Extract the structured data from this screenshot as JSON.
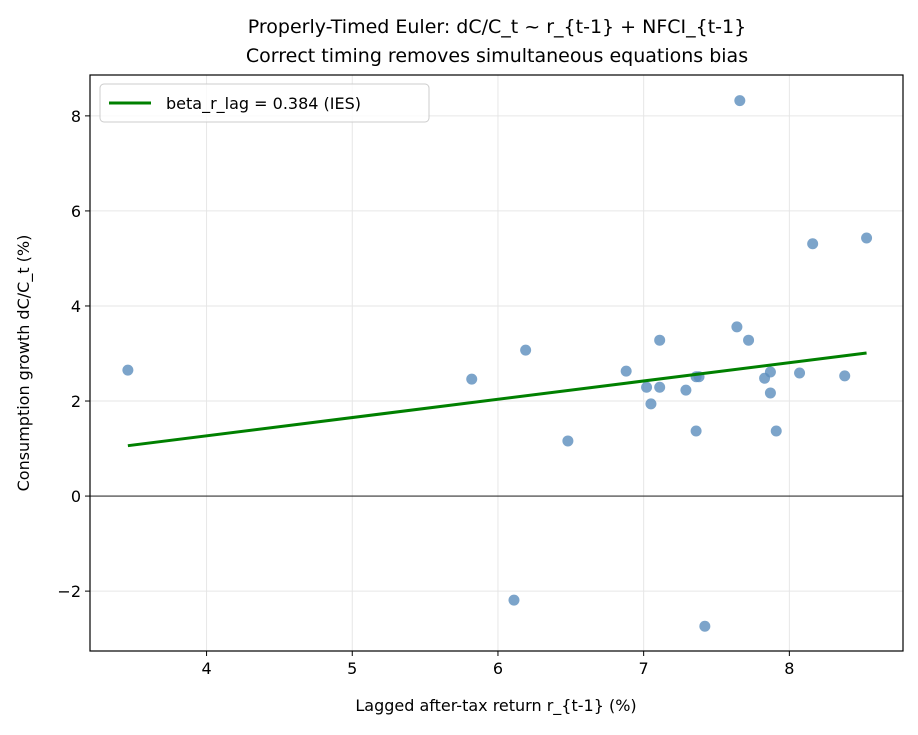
{
  "chart_data": {
    "type": "scatter",
    "title": "Properly-Timed Euler: dC/C_t ~ r_{t-1} + NFCI_{t-1}",
    "subtitle": "Correct timing removes simultaneous equations bias",
    "xlabel": "Lagged after-tax return r_{t-1} (%)",
    "ylabel": "Consumption growth dC/C_t (%)",
    "xlim": [
      3.2,
      8.78
    ],
    "ylim": [
      -3.26,
      8.86
    ],
    "xticks": [
      4,
      5,
      6,
      7,
      8
    ],
    "yticks": [
      -2,
      0,
      2,
      4,
      6,
      8
    ],
    "ytick_labels": [
      "−2",
      "0",
      "2",
      "4",
      "6",
      "8"
    ],
    "grid": true,
    "zero_line": true,
    "legend_position": "top-left",
    "point_color": "#5b8dbd",
    "line_color": "#008000",
    "points": [
      [
        3.46,
        2.65
      ],
      [
        5.82,
        2.46
      ],
      [
        6.19,
        3.07
      ],
      [
        6.11,
        -2.19
      ],
      [
        6.48,
        1.16
      ],
      [
        6.88,
        2.63
      ],
      [
        7.02,
        2.29
      ],
      [
        7.05,
        1.94
      ],
      [
        7.11,
        2.29
      ],
      [
        7.11,
        3.28
      ],
      [
        7.29,
        2.23
      ],
      [
        7.36,
        2.51
      ],
      [
        7.38,
        2.51
      ],
      [
        7.36,
        1.37
      ],
      [
        7.42,
        -2.74
      ],
      [
        7.64,
        3.56
      ],
      [
        7.66,
        8.32
      ],
      [
        7.72,
        3.28
      ],
      [
        7.83,
        2.48
      ],
      [
        7.87,
        2.61
      ],
      [
        7.87,
        2.17
      ],
      [
        7.91,
        1.37
      ],
      [
        8.07,
        2.59
      ],
      [
        8.16,
        5.31
      ],
      [
        8.38,
        2.53
      ],
      [
        8.53,
        5.43
      ]
    ],
    "fit_line": {
      "name": "beta_r_lag = 0.384 (IES)",
      "x": [
        3.46,
        8.53
      ],
      "y": [
        1.06,
        3.01
      ]
    }
  }
}
